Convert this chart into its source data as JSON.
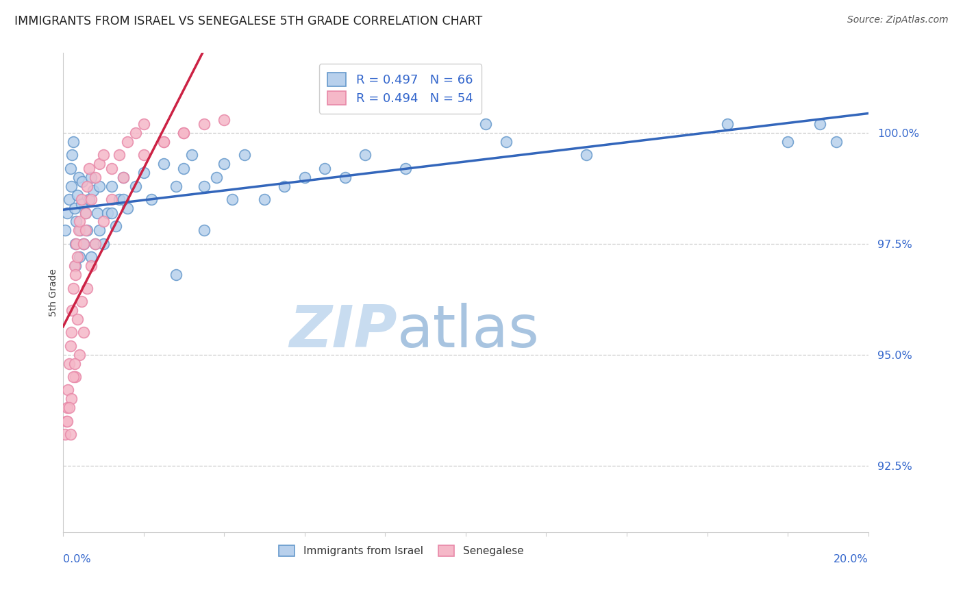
{
  "title": "IMMIGRANTS FROM ISRAEL VS SENEGALESE 5TH GRADE CORRELATION CHART",
  "source": "Source: ZipAtlas.com",
  "ylabel": "5th Grade",
  "y_ticks": [
    92.5,
    95.0,
    97.5,
    100.0
  ],
  "y_tick_labels": [
    "92.5%",
    "95.0%",
    "97.5%",
    "100.0%"
  ],
  "x_range": [
    0.0,
    20.0
  ],
  "y_range": [
    91.0,
    101.8
  ],
  "legend_R1": "R = 0.497",
  "legend_N1": "N = 66",
  "legend_R2": "R = 0.494",
  "legend_N2": "N = 54",
  "legend_label1": "Immigrants from Israel",
  "legend_label2": "Senegalese",
  "blue_face": "#B8D0EC",
  "blue_edge": "#6699CC",
  "pink_face": "#F5B8C8",
  "pink_edge": "#E888A8",
  "trend_blue": "#3366BB",
  "trend_pink": "#CC2244",
  "watermark_zip": "ZIP",
  "watermark_atlas": "atlas",
  "watermark_color_zip": "#C8DCF0",
  "watermark_color_atlas": "#A8C4E0",
  "blue_scatter_x": [
    0.05,
    0.1,
    0.15,
    0.18,
    0.2,
    0.22,
    0.25,
    0.28,
    0.3,
    0.32,
    0.35,
    0.38,
    0.4,
    0.42,
    0.45,
    0.48,
    0.5,
    0.55,
    0.6,
    0.65,
    0.7,
    0.75,
    0.8,
    0.85,
    0.9,
    1.0,
    1.1,
    1.2,
    1.3,
    1.4,
    1.5,
    1.6,
    1.8,
    2.0,
    2.2,
    2.5,
    2.8,
    3.0,
    3.2,
    3.5,
    3.8,
    4.0,
    4.5,
    5.0,
    5.5,
    6.0,
    6.5,
    7.0,
    7.5,
    8.5,
    10.5,
    11.0,
    13.0,
    16.5,
    18.0,
    18.8,
    19.2,
    0.3,
    0.5,
    0.7,
    0.9,
    1.2,
    1.5,
    2.8,
    3.5,
    4.2
  ],
  "blue_scatter_y": [
    97.8,
    98.2,
    98.5,
    99.2,
    98.8,
    99.5,
    99.8,
    98.3,
    97.5,
    98.0,
    98.6,
    99.0,
    97.2,
    97.8,
    98.4,
    98.9,
    97.5,
    98.2,
    97.8,
    98.5,
    99.0,
    98.7,
    97.5,
    98.2,
    98.8,
    97.5,
    98.2,
    98.8,
    97.9,
    98.5,
    99.0,
    98.3,
    98.8,
    99.1,
    98.5,
    99.3,
    98.8,
    99.2,
    99.5,
    98.8,
    99.0,
    99.3,
    99.5,
    98.5,
    98.8,
    99.0,
    99.2,
    99.0,
    99.5,
    99.2,
    100.2,
    99.8,
    99.5,
    100.2,
    99.8,
    100.2,
    99.8,
    97.0,
    97.5,
    97.2,
    97.8,
    98.2,
    98.5,
    96.8,
    97.8,
    98.5
  ],
  "pink_scatter_x": [
    0.05,
    0.08,
    0.1,
    0.12,
    0.15,
    0.18,
    0.2,
    0.22,
    0.25,
    0.28,
    0.3,
    0.32,
    0.35,
    0.38,
    0.4,
    0.45,
    0.5,
    0.55,
    0.6,
    0.65,
    0.7,
    0.8,
    0.9,
    1.0,
    1.2,
    1.4,
    1.6,
    1.8,
    2.0,
    2.5,
    3.0,
    3.5,
    4.0,
    0.1,
    0.2,
    0.3,
    0.4,
    0.5,
    0.6,
    0.7,
    0.8,
    1.0,
    1.2,
    1.5,
    2.0,
    2.5,
    3.0,
    0.15,
    0.25,
    0.35,
    0.18,
    0.28,
    0.45,
    0.55
  ],
  "pink_scatter_y": [
    93.2,
    93.5,
    93.8,
    94.2,
    94.8,
    95.2,
    95.5,
    96.0,
    96.5,
    97.0,
    96.8,
    97.5,
    97.2,
    97.8,
    98.0,
    98.5,
    97.5,
    98.2,
    98.8,
    99.2,
    98.5,
    99.0,
    99.3,
    99.5,
    99.2,
    99.5,
    99.8,
    100.0,
    100.2,
    99.8,
    100.0,
    100.2,
    100.3,
    93.5,
    94.0,
    94.5,
    95.0,
    95.5,
    96.5,
    97.0,
    97.5,
    98.0,
    98.5,
    99.0,
    99.5,
    99.8,
    100.0,
    93.8,
    94.5,
    95.8,
    93.2,
    94.8,
    96.2,
    97.8
  ]
}
